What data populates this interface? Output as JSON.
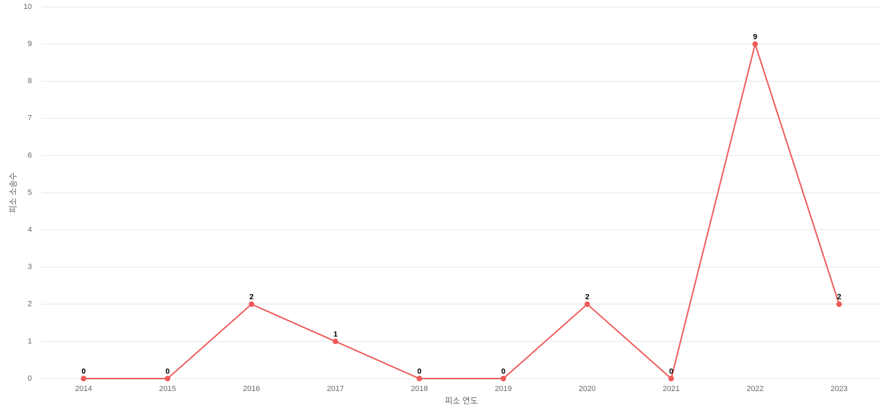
{
  "chart_data": {
    "type": "line",
    "x_label": "피소 연도",
    "y_label": "피소 소송수",
    "categories": [
      "2014",
      "2015",
      "2016",
      "2017",
      "2018",
      "2019",
      "2020",
      "2021",
      "2022",
      "2023"
    ],
    "values": [
      0,
      0,
      2,
      1,
      0,
      0,
      2,
      0,
      9,
      2
    ],
    "color": "#ef5a5a",
    "ylim": [
      0,
      10
    ],
    "yticks": [
      0,
      1,
      2,
      3,
      4,
      5,
      6,
      7,
      8,
      9,
      10
    ],
    "grid": true,
    "data_labels": true
  }
}
